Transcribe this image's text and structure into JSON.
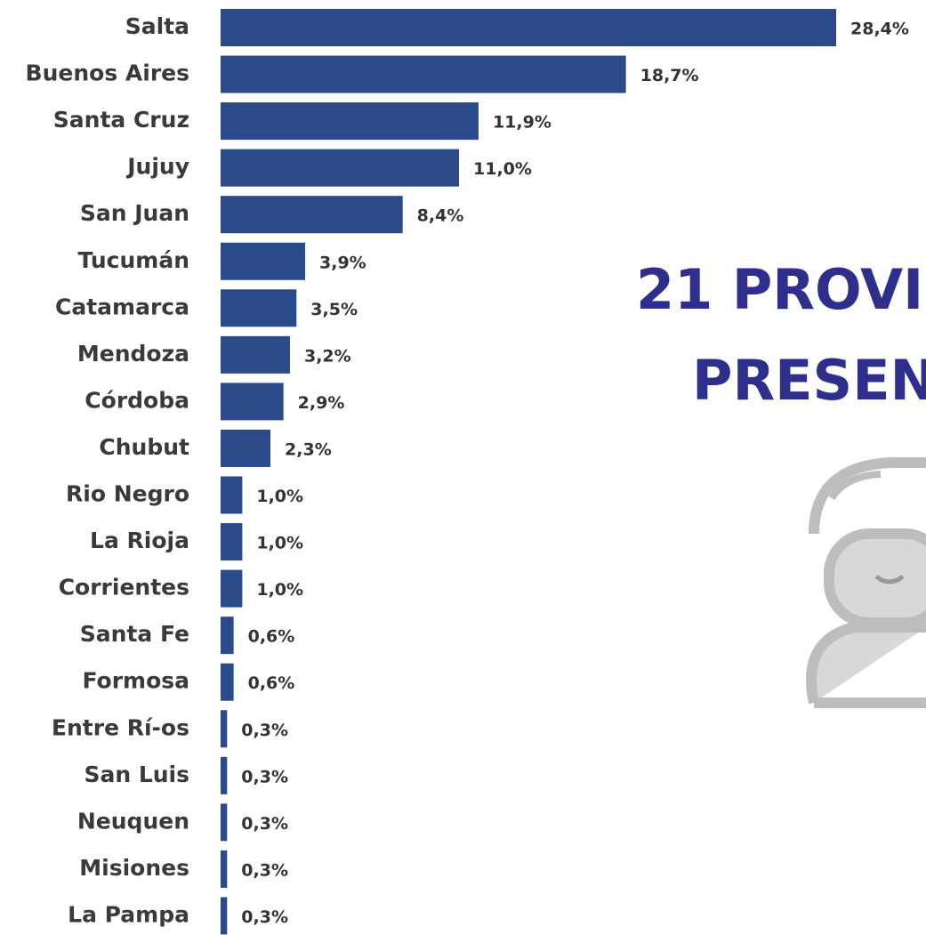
{
  "chart_data": {
    "type": "hbar",
    "categories": [
      "Salta",
      "Buenos Aires",
      "Santa Cruz",
      "Jujuy",
      "San Juan",
      "Tucumán",
      "Catamarca",
      "Mendoza",
      "Córdoba",
      "Chubut",
      "Rio Negro",
      "La Rioja",
      "Corrientes",
      "Santa Fe",
      "Formosa",
      "Entre Rí-os",
      "San Luis",
      "Neuquen",
      "Misiones",
      "La Pampa"
    ],
    "values": [
      28.4,
      18.7,
      11.9,
      11.0,
      8.4,
      3.9,
      3.5,
      3.2,
      2.9,
      2.3,
      1.0,
      1.0,
      1.0,
      0.6,
      0.6,
      0.3,
      0.3,
      0.3,
      0.3,
      0.3
    ],
    "value_labels": [
      "28,4%",
      "18,7%",
      "11,9%",
      "11,0%",
      "8,4%",
      "3,9%",
      "3,5%",
      "3,2%",
      "2,9%",
      "2,3%",
      "1,0%",
      "1,0%",
      "1,0%",
      "0,6%",
      "0,6%",
      "0,3%",
      "0,3%",
      "0,3%",
      "0,3%",
      "0,3%"
    ],
    "color": "#2b4a8a",
    "annotations": [
      "21 PROVI",
      "PRESEN"
    ]
  }
}
